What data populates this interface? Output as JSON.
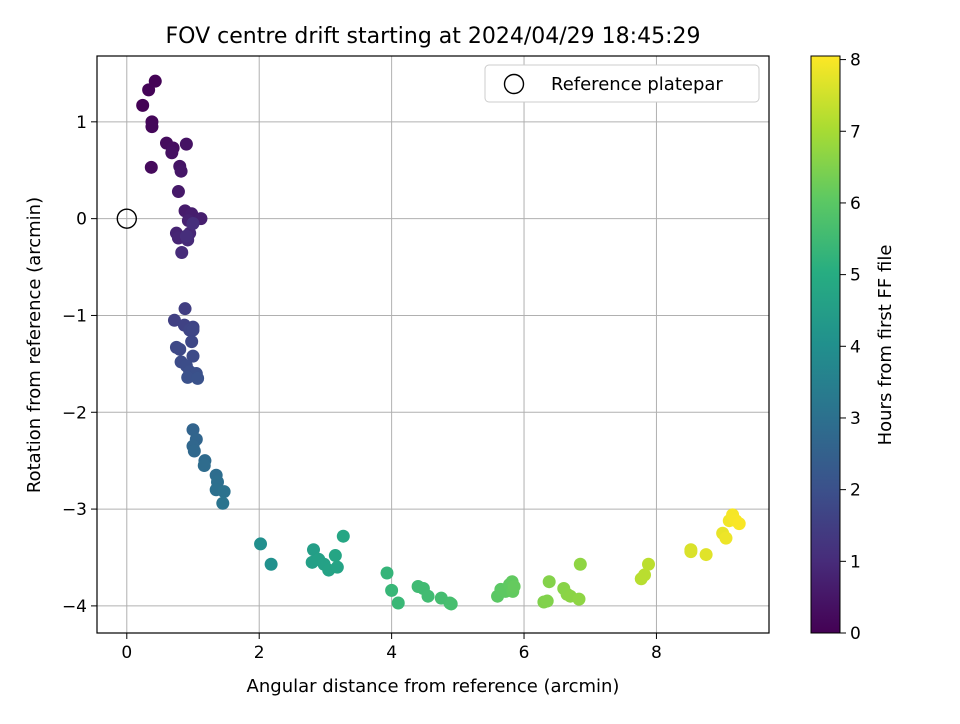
{
  "chart_data": {
    "type": "scatter",
    "title": "FOV centre drift starting at 2024/04/29 18:45:29",
    "xlabel": "Angular distance from reference (arcmin)",
    "ylabel": "Rotation from reference (arcmin)",
    "xlim": [
      -0.45,
      9.7
    ],
    "ylim": [
      -4.28,
      1.68
    ],
    "xticks": [
      0,
      2,
      4,
      6,
      8
    ],
    "yticks": [
      -4,
      -3,
      -2,
      -1,
      0,
      1
    ],
    "grid": true,
    "legend": {
      "placement": "top-right",
      "entries": [
        "Reference platepar"
      ]
    },
    "reference_point": {
      "x": 0,
      "y": 0
    },
    "colorbar": {
      "label": "Hours from first FF file",
      "range": [
        0,
        8.05
      ],
      "ticks": [
        0,
        1,
        2,
        3,
        4,
        5,
        6,
        7,
        8
      ],
      "colormap": [
        "#440154",
        "#472c7a",
        "#3b518b",
        "#2c718e",
        "#21908d",
        "#27ad81",
        "#5cc863",
        "#aadc32",
        "#fde725"
      ]
    },
    "points": [
      {
        "x": 0.24,
        "y": 1.17,
        "c": 0.02
      },
      {
        "x": 0.43,
        "y": 1.42,
        "c": 0.05
      },
      {
        "x": 0.33,
        "y": 1.33,
        "c": 0.08
      },
      {
        "x": 0.38,
        "y": 1.0,
        "c": 0.12
      },
      {
        "x": 0.38,
        "y": 0.95,
        "c": 0.15
      },
      {
        "x": 0.37,
        "y": 0.53,
        "c": 0.2
      },
      {
        "x": 0.6,
        "y": 0.78,
        "c": 0.25
      },
      {
        "x": 0.7,
        "y": 0.73,
        "c": 0.3
      },
      {
        "x": 0.68,
        "y": 0.68,
        "c": 0.35
      },
      {
        "x": 0.9,
        "y": 0.77,
        "c": 0.4
      },
      {
        "x": 0.8,
        "y": 0.54,
        "c": 0.45
      },
      {
        "x": 0.82,
        "y": 0.49,
        "c": 0.5
      },
      {
        "x": 0.78,
        "y": 0.28,
        "c": 0.55
      },
      {
        "x": 0.88,
        "y": 0.08,
        "c": 0.6
      },
      {
        "x": 0.98,
        "y": 0.05,
        "c": 0.65
      },
      {
        "x": 1.12,
        "y": 0.0,
        "c": 0.7
      },
      {
        "x": 0.93,
        "y": -0.02,
        "c": 0.75
      },
      {
        "x": 0.75,
        "y": -0.15,
        "c": 0.8
      },
      {
        "x": 0.78,
        "y": -0.2,
        "c": 0.85
      },
      {
        "x": 0.95,
        "y": -0.15,
        "c": 0.9
      },
      {
        "x": 0.92,
        "y": -0.22,
        "c": 0.95
      },
      {
        "x": 0.83,
        "y": -0.35,
        "c": 1.0
      },
      {
        "x": 0.9,
        "y": -0.18,
        "c": 1.05
      },
      {
        "x": 1.0,
        "y": -0.05,
        "c": 1.1
      },
      {
        "x": 0.88,
        "y": -0.93,
        "c": 1.5
      },
      {
        "x": 0.72,
        "y": -1.05,
        "c": 1.55
      },
      {
        "x": 0.87,
        "y": -1.1,
        "c": 1.6
      },
      {
        "x": 1.0,
        "y": -1.12,
        "c": 1.65
      },
      {
        "x": 0.95,
        "y": -1.15,
        "c": 1.68
      },
      {
        "x": 1.0,
        "y": -1.15,
        "c": 1.7
      },
      {
        "x": 0.98,
        "y": -1.27,
        "c": 1.75
      },
      {
        "x": 0.75,
        "y": -1.33,
        "c": 1.78
      },
      {
        "x": 0.8,
        "y": -1.35,
        "c": 1.8
      },
      {
        "x": 1.0,
        "y": -1.42,
        "c": 1.85
      },
      {
        "x": 0.82,
        "y": -1.48,
        "c": 1.88
      },
      {
        "x": 0.9,
        "y": -1.52,
        "c": 1.9
      },
      {
        "x": 0.95,
        "y": -1.58,
        "c": 1.95
      },
      {
        "x": 1.05,
        "y": -1.6,
        "c": 1.98
      },
      {
        "x": 0.92,
        "y": -1.64,
        "c": 2.0
      },
      {
        "x": 1.07,
        "y": -1.65,
        "c": 2.05
      },
      {
        "x": 1.0,
        "y": -2.18,
        "c": 2.6
      },
      {
        "x": 1.05,
        "y": -2.28,
        "c": 2.65
      },
      {
        "x": 1.0,
        "y": -2.35,
        "c": 2.7
      },
      {
        "x": 1.02,
        "y": -2.4,
        "c": 2.75
      },
      {
        "x": 1.18,
        "y": -2.5,
        "c": 2.8
      },
      {
        "x": 1.17,
        "y": -2.55,
        "c": 2.85
      },
      {
        "x": 1.35,
        "y": -2.65,
        "c": 2.9
      },
      {
        "x": 1.37,
        "y": -2.72,
        "c": 2.95
      },
      {
        "x": 1.35,
        "y": -2.8,
        "c": 3.0
      },
      {
        "x": 1.47,
        "y": -2.82,
        "c": 3.05
      },
      {
        "x": 1.45,
        "y": -2.94,
        "c": 3.1
      },
      {
        "x": 2.02,
        "y": -3.36,
        "c": 4.0
      },
      {
        "x": 2.18,
        "y": -3.57,
        "c": 4.05
      },
      {
        "x": 2.82,
        "y": -3.42,
        "c": 4.5
      },
      {
        "x": 2.8,
        "y": -3.55,
        "c": 4.55
      },
      {
        "x": 2.9,
        "y": -3.52,
        "c": 4.58
      },
      {
        "x": 2.98,
        "y": -3.57,
        "c": 4.62
      },
      {
        "x": 3.05,
        "y": -3.63,
        "c": 4.66
      },
      {
        "x": 3.18,
        "y": -3.6,
        "c": 4.7
      },
      {
        "x": 3.15,
        "y": -3.48,
        "c": 4.75
      },
      {
        "x": 3.27,
        "y": -3.28,
        "c": 4.8
      },
      {
        "x": 3.93,
        "y": -3.66,
        "c": 5.3
      },
      {
        "x": 4.0,
        "y": -3.84,
        "c": 5.35
      },
      {
        "x": 4.1,
        "y": -3.97,
        "c": 5.4
      },
      {
        "x": 4.4,
        "y": -3.8,
        "c": 5.5
      },
      {
        "x": 4.48,
        "y": -3.82,
        "c": 5.52
      },
      {
        "x": 4.55,
        "y": -3.9,
        "c": 5.55
      },
      {
        "x": 4.75,
        "y": -3.92,
        "c": 5.6
      },
      {
        "x": 4.88,
        "y": -3.97,
        "c": 5.62
      },
      {
        "x": 4.9,
        "y": -3.98,
        "c": 5.65
      },
      {
        "x": 5.6,
        "y": -3.9,
        "c": 6.0
      },
      {
        "x": 5.65,
        "y": -3.83,
        "c": 6.02
      },
      {
        "x": 5.72,
        "y": -3.85,
        "c": 6.05
      },
      {
        "x": 5.78,
        "y": -3.78,
        "c": 6.08
      },
      {
        "x": 5.82,
        "y": -3.75,
        "c": 6.1
      },
      {
        "x": 5.83,
        "y": -3.85,
        "c": 6.12
      },
      {
        "x": 5.85,
        "y": -3.8,
        "c": 6.15
      },
      {
        "x": 6.3,
        "y": -3.96,
        "c": 6.5
      },
      {
        "x": 6.35,
        "y": -3.95,
        "c": 6.52
      },
      {
        "x": 6.38,
        "y": -3.75,
        "c": 6.55
      },
      {
        "x": 6.6,
        "y": -3.82,
        "c": 6.6
      },
      {
        "x": 6.65,
        "y": -3.88,
        "c": 6.62
      },
      {
        "x": 6.7,
        "y": -3.9,
        "c": 6.65
      },
      {
        "x": 6.83,
        "y": -3.93,
        "c": 6.68
      },
      {
        "x": 6.85,
        "y": -3.57,
        "c": 6.7
      },
      {
        "x": 7.77,
        "y": -3.72,
        "c": 7.2
      },
      {
        "x": 7.82,
        "y": -3.68,
        "c": 7.22
      },
      {
        "x": 7.88,
        "y": -3.57,
        "c": 7.25
      },
      {
        "x": 8.52,
        "y": -3.42,
        "c": 7.6
      },
      {
        "x": 8.52,
        "y": -3.44,
        "c": 7.62
      },
      {
        "x": 8.75,
        "y": -3.47,
        "c": 7.7
      },
      {
        "x": 9.0,
        "y": -3.25,
        "c": 7.8
      },
      {
        "x": 9.05,
        "y": -3.3,
        "c": 7.85
      },
      {
        "x": 9.1,
        "y": -3.12,
        "c": 7.9
      },
      {
        "x": 9.15,
        "y": -3.06,
        "c": 7.95
      },
      {
        "x": 9.2,
        "y": -3.12,
        "c": 7.98
      },
      {
        "x": 9.25,
        "y": -3.15,
        "c": 8.0
      }
    ]
  }
}
